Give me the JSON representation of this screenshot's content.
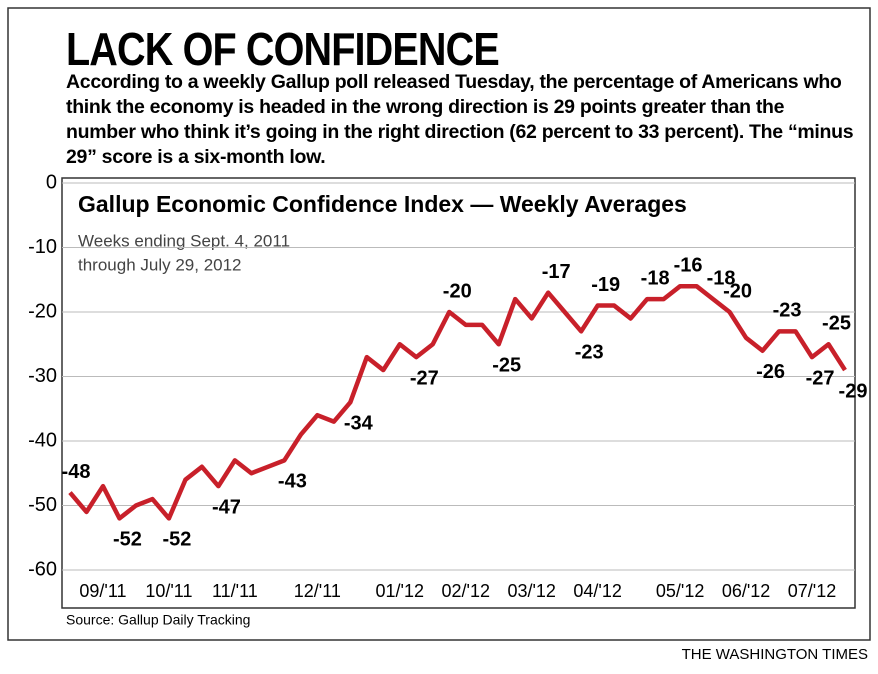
{
  "chart_data": {
    "type": "line",
    "title": "LACK OF CONFIDENCE",
    "subtitle": "According to a weekly Gallup poll released Tuesday, the percentage of Americans who think the economy is headed in the wrong direction is 29 points greater than the number who think it’s going in the right direction (62 percent to 33 percent). The “minus 29” score is a six-month low.",
    "chart_title": "Gallup Economic Confidence Index — Weekly Averages",
    "note": [
      "Weeks ending Sept. 4, 2011",
      "through July 29, 2012"
    ],
    "source": "Source: Gallup Daily Tracking",
    "credit": "THE WASHINGTON TIMES",
    "categories": [
      null,
      null,
      "09/'11",
      null,
      null,
      null,
      "10/'11",
      null,
      null,
      null,
      "11/'11",
      null,
      null,
      null,
      null,
      "12/'11",
      null,
      null,
      null,
      null,
      "01/'12",
      null,
      null,
      null,
      "02/'12",
      null,
      null,
      null,
      "03/'12",
      null,
      null,
      null,
      "04/'12",
      null,
      null,
      null,
      null,
      "05/'12",
      null,
      null,
      null,
      "06/'12",
      null,
      null,
      null,
      "07/'12",
      null,
      null
    ],
    "series": [
      {
        "name": "Economic Confidence Index",
        "color": "#c8202a",
        "values": [
          -48,
          -51,
          -47,
          -52,
          -50,
          -49,
          -52,
          -46,
          -44,
          -47,
          -43,
          -45,
          -44,
          -43,
          -39,
          -36,
          -37,
          -34,
          -27,
          -29,
          -25,
          -27,
          -25,
          -20,
          -22,
          -22,
          -25,
          -18,
          -21,
          -17,
          -20,
          -23,
          -19,
          -19,
          -21,
          -18,
          -18,
          -16,
          -16,
          -18,
          -20,
          -24,
          -26,
          -23,
          -23,
          -27,
          -25,
          -29
        ],
        "value_labels": [
          "-48",
          null,
          null,
          "-52",
          null,
          null,
          "-52",
          null,
          null,
          "-47",
          null,
          null,
          null,
          "-43",
          null,
          null,
          null,
          "-34",
          null,
          null,
          null,
          "-27",
          null,
          "-20",
          null,
          null,
          "-25",
          null,
          null,
          "-17",
          null,
          "-23",
          "-19",
          null,
          null,
          "-18",
          null,
          "-16",
          null,
          "-18",
          "-20",
          null,
          "-26",
          "-23",
          null,
          "-27",
          "-25",
          "-29"
        ]
      }
    ],
    "ylim": [
      -60,
      0
    ],
    "yticks": [
      -60,
      -50,
      -40,
      -30,
      -20,
      -10,
      0
    ],
    "grid": true
  }
}
